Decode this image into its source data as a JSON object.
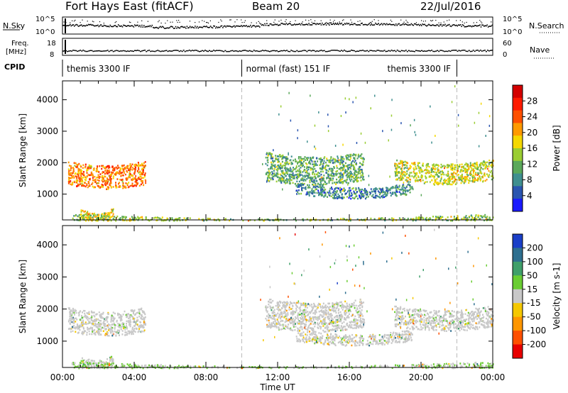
{
  "header": {
    "station": "Fort Hays East (fitACF)",
    "beam": "Beam 20",
    "date": "22/Jul/2016"
  },
  "strip_labels": {
    "nsky": "N.Sky",
    "nsearch": "N.Search",
    "freq_line1": "Freq.",
    "freq_line2": "[MHz]",
    "nave": "Nave",
    "cpid": "CPID",
    "noise_top": "10^5",
    "noise_bottom": "10^0",
    "noise_top_r": "10^5",
    "noise_bottom_r": "10^0",
    "freq_top": "18",
    "freq_bottom": "8",
    "nave_top": "60",
    "nave_bottom": "0"
  },
  "cpid_segments": [
    {
      "label": "themis 3300 IF",
      "start_hr": 0,
      "end_hr": 10
    },
    {
      "label": "normal (fast) 151 IF",
      "start_hr": 10,
      "end_hr": 22
    },
    {
      "label": "themis 3300 IF",
      "start_hr": 22,
      "end_hr": 24
    }
  ],
  "x_axis": {
    "title": "Time UT",
    "ticks": [
      "00:00",
      "04:00",
      "08:00",
      "12:00",
      "16:00",
      "20:00",
      "00:00"
    ],
    "range_hr": [
      0,
      24
    ]
  },
  "chart_data": [
    {
      "type": "heatmap",
      "name": "power",
      "ylabel": "Slant Range [km]",
      "yticks": [
        "1000",
        "2000",
        "3000",
        "4000"
      ],
      "ylim": [
        180,
        4600
      ],
      "colorbar": {
        "title": "Power [dB]",
        "ticks": [
          "4",
          "8",
          "12",
          "16",
          "20",
          "24",
          "28"
        ],
        "range": [
          0,
          32
        ],
        "colors": [
          "#1a1aff",
          "#2a55b0",
          "#3f8f8f",
          "#5aa85a",
          "#9acd32",
          "#f5d800",
          "#ff9a00",
          "#ff5000",
          "#ff1a00",
          "#d40000"
        ]
      },
      "echo_regions": [
        {
          "t0": 0.3,
          "t1": 4.6,
          "r_center": 1700,
          "r_width": 750,
          "value_mean": 22
        },
        {
          "t0": 1.0,
          "t1": 2.8,
          "r_center": 400,
          "r_width": 350,
          "value_mean": 18
        },
        {
          "t0": 11.3,
          "t1": 16.8,
          "r_center": 1900,
          "r_width": 900,
          "value_mean": 11
        },
        {
          "t0": 13.0,
          "t1": 19.5,
          "r_center": 1200,
          "r_width": 350,
          "value_mean": 8
        },
        {
          "t0": 18.5,
          "t1": 24.0,
          "r_center": 1800,
          "r_width": 650,
          "value_mean": 16
        },
        {
          "t0": 0.5,
          "t1": 24.0,
          "r_center": 280,
          "r_width": 200,
          "value_mean": 14
        }
      ]
    },
    {
      "type": "heatmap",
      "name": "velocity",
      "ylabel": "Slant Range [km]",
      "yticks": [
        "1000",
        "2000",
        "3000",
        "4000"
      ],
      "ylim": [
        180,
        4600
      ],
      "colorbar": {
        "title": "Velocity [m s-1]",
        "ticks": [
          "200",
          "100",
          "50",
          "15",
          "-15",
          "-50",
          "-100",
          "-200"
        ],
        "range": [
          -250,
          250
        ],
        "colors": [
          "#1a3fc8",
          "#2e6f8f",
          "#3f9f6a",
          "#6acd32",
          "#c8c8c8",
          "#f5c800",
          "#ff9600",
          "#ff5000",
          "#e80000"
        ]
      },
      "echo_regions": [
        {
          "t0": 0.3,
          "t1": 4.6,
          "r_center": 1700,
          "r_width": 750,
          "value_mean": 0
        },
        {
          "t0": 1.0,
          "t1": 2.8,
          "r_center": 400,
          "r_width": 350,
          "value_mean": 0
        },
        {
          "t0": 11.3,
          "t1": 16.8,
          "r_center": 1900,
          "r_width": 900,
          "value_mean": 0
        },
        {
          "t0": 13.0,
          "t1": 19.5,
          "r_center": 1200,
          "r_width": 350,
          "value_mean": 0
        },
        {
          "t0": 18.5,
          "t1": 24.0,
          "r_center": 1800,
          "r_width": 650,
          "value_mean": 0
        },
        {
          "t0": 0.5,
          "t1": 24.0,
          "r_center": 280,
          "r_width": 200,
          "value_mean": -30
        }
      ]
    }
  ]
}
